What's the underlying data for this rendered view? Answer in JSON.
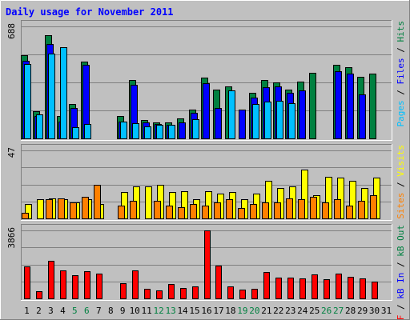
{
  "chart_data": {
    "type": "bar",
    "title": "Daily usage for November 2011",
    "categories": [
      "1",
      "2",
      "3",
      "4",
      "5",
      "6",
      "7",
      "8",
      "9",
      "10",
      "11",
      "12",
      "13",
      "14",
      "15",
      "16",
      "17",
      "18",
      "19",
      "20",
      "21",
      "22",
      "23",
      "24",
      "25",
      "26",
      "27",
      "28",
      "29",
      "30",
      "31"
    ],
    "weekend_days": [
      "5",
      "6",
      "12",
      "13",
      "19",
      "20",
      "26",
      "27"
    ],
    "panels": [
      {
        "id": "hits",
        "ymax": 688,
        "ymax_label": "688",
        "grid": true,
        "legend": [
          {
            "text": "Pages",
            "color": "#00c0ff"
          },
          {
            "text": " / ",
            "color": "#000000"
          },
          {
            "text": "Files",
            "color": "#0000ff"
          },
          {
            "text": " / ",
            "color": "#000000"
          },
          {
            "text": "Hits",
            "color": "#008040"
          }
        ],
        "series": [
          {
            "name": "Hits",
            "color": "#008040",
            "values": [
              510,
              165,
              632,
              140,
              210,
              470,
              0,
              0,
              140,
              360,
              115,
              100,
              100,
              125,
              175,
              375,
              300,
              320,
              0,
              280,
              360,
              345,
              300,
              350,
              405,
              0,
              454,
              435,
              380,
              400,
              0
            ]
          },
          {
            "name": "Files",
            "color": "#0000ff",
            "values": [
              475,
              140,
              580,
              105,
              185,
              450,
              0,
              0,
              105,
              330,
              100,
              90,
              85,
              100,
              155,
              340,
              185,
              0,
              175,
              250,
              315,
              320,
              280,
              295,
              0,
              0,
              415,
              400,
              270,
              0,
              0
            ]
          },
          {
            "name": "Pages",
            "color": "#00c0ff",
            "values": [
              455,
              145,
              520,
              560,
              70,
              90,
              0,
              0,
              105,
              95,
              75,
              85,
              85,
              0,
              120,
              0,
              0,
              295,
              0,
              210,
              225,
              230,
              215,
              0,
              0,
              0,
              0,
              0,
              0,
              0,
              0
            ]
          }
        ]
      },
      {
        "id": "visits",
        "ymax": 47,
        "ymax_label": "47",
        "grid": true,
        "legend": [
          {
            "text": "Sites",
            "color": "#ff8000"
          },
          {
            "text": " / ",
            "color": "#000000"
          },
          {
            "text": "Visits",
            "color": "#ffff00"
          }
        ],
        "series": [
          {
            "name": "Visits",
            "color": "#ffff00",
            "values": [
              10,
              13,
              14,
              13,
              11,
              13,
              10,
              0,
              18,
              22,
              22,
              23,
              18,
              19,
              13,
              19,
              17,
              18,
              13,
              17,
              26,
              21,
              22,
              34,
              16,
              29,
              28,
              26,
              21,
              28,
              0
            ]
          },
          {
            "name": "Sites",
            "color": "#ff8000",
            "values": [
              4,
              0,
              13,
              14,
              11,
              15,
              23,
              0,
              9,
              12,
              0,
              12,
              9,
              8,
              10,
              9,
              11,
              13,
              7,
              10,
              11,
              11,
              14,
              13,
              15,
              11,
              13,
              9,
              12,
              16,
              0
            ]
          }
        ]
      },
      {
        "id": "kbytes",
        "ymax": 3866,
        "ymax_label": "3866",
        "grid": true,
        "legend": [
          {
            "text": "kB F",
            "color": "#ff0000"
          },
          {
            "text": " / ",
            "color": "#000000"
          },
          {
            "text": "kB In",
            "color": "#0000ff"
          },
          {
            "text": " / ",
            "color": "#000000"
          },
          {
            "text": "kB Out",
            "color": "#008040"
          }
        ],
        "series": [
          {
            "name": "kB F",
            "color": "#ff0000",
            "values": [
              1800,
              400,
              2150,
              1600,
              1300,
              1550,
              1400,
              0,
              850,
              1600,
              550,
              450,
              800,
              600,
              700,
              3866,
              1850,
              700,
              500,
              550,
              1500,
              1200,
              1200,
              1150,
              1350,
              1100,
              1400,
              1250,
              1150,
              950,
              0
            ]
          }
        ]
      }
    ]
  }
}
